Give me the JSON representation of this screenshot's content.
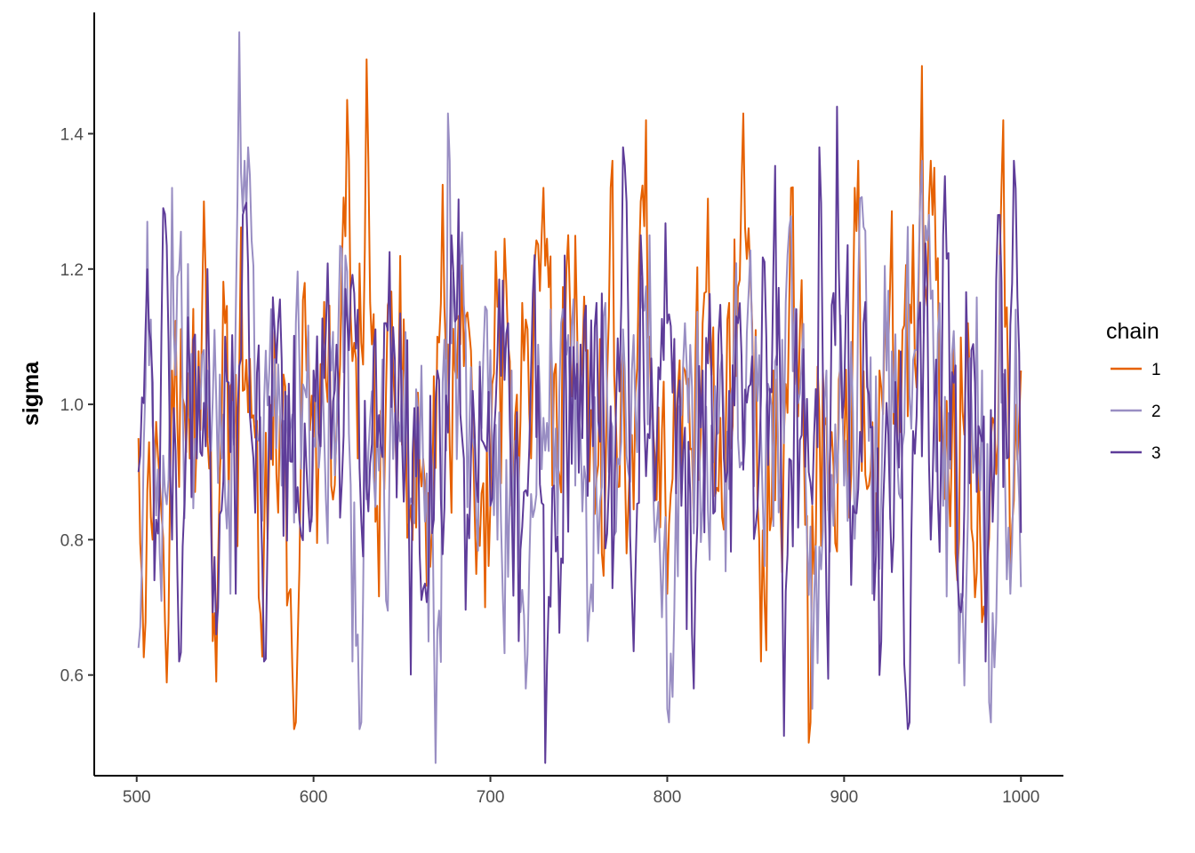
{
  "chart_data": {
    "type": "line",
    "title": "",
    "xlabel": "",
    "ylabel": "sigma",
    "xlim": [
      476,
      1024
    ],
    "ylim": [
      0.4512,
      1.5792
    ],
    "x_ticks": [
      "500",
      "600",
      "700",
      "800",
      "900",
      "1000"
    ],
    "y_ticks": [
      "0.6",
      "0.8",
      "1.0",
      "1.2",
      "1.4"
    ],
    "grid": false,
    "legend": {
      "title": "chain",
      "position": "right"
    },
    "x_range": [
      501,
      1000
    ],
    "series": [
      {
        "name": "1",
        "color": "#e66101",
        "x": [
          501,
          510,
          520,
          530,
          538,
          543,
          550,
          555,
          560,
          565,
          570,
          575,
          580,
          589,
          596,
          600,
          610,
          619,
          625,
          630,
          636,
          641,
          650,
          660,
          666,
          670,
          680,
          690,
          697,
          707,
          712,
          718,
          723,
          730,
          735,
          745,
          755,
          763,
          768,
          778,
          788,
          790,
          800,
          805,
          810,
          820,
          830,
          835,
          843,
          848,
          853,
          860,
          864,
          870,
          877,
          880,
          882,
          890,
          900,
          906,
          914,
          920,
          930,
          938,
          944,
          950,
          956,
          963,
          970,
          980,
          984,
          990,
          994,
          1000
        ],
        "values": [
          0.95,
          0.88,
          1.05,
          0.92,
          1.3,
          0.65,
          1.12,
          0.95,
          1.02,
          0.98,
          0.69,
          0.92,
          0.84,
          0.52,
          1.05,
          0.95,
          0.88,
          1.45,
          0.92,
          1.51,
          0.85,
          1.02,
          0.94,
          0.91,
          0.76,
          1.1,
          1.05,
          0.98,
          0.7,
          1.1,
          0.85,
          1.15,
          0.92,
          1.32,
          0.88,
          1.15,
          1.08,
          0.78,
          1.32,
          0.85,
          1.42,
          1.1,
          0.72,
          0.95,
          1.05,
          1.12,
          0.98,
          1.15,
          1.43,
          1.12,
          0.62,
          1.05,
          0.85,
          1.32,
          0.98,
          0.5,
          0.85,
          0.98,
          0.92,
          1.32,
          0.88,
          1.05,
          0.95,
          1.12,
          1.5,
          1.28,
          0.92,
          0.78,
          1.12,
          0.68,
          0.98,
          1.42,
          0.74,
          1.05
        ]
      },
      {
        "name": "2",
        "color": "#998ec3",
        "x": [
          501,
          506,
          513,
          520,
          530,
          540,
          548,
          553,
          558,
          563,
          568,
          575,
          582,
          590,
          600,
          610,
          618,
          622,
          626,
          632,
          640,
          650,
          660,
          669,
          676,
          680,
          690,
          700,
          707,
          712,
          720,
          730,
          740,
          748,
          755,
          765,
          772,
          780,
          790,
          800,
          805,
          810,
          820,
          830,
          840,
          850,
          860,
          868,
          878,
          882,
          890,
          900,
          908,
          916,
          924,
          930,
          940,
          948,
          956,
          966,
          978,
          982,
          988,
          994,
          997,
          1000
        ],
        "values": [
          0.64,
          1.27,
          0.78,
          1.32,
          0.98,
          1.05,
          0.92,
          0.72,
          1.55,
          1.38,
          0.95,
          1.05,
          0.88,
          1.12,
          0.95,
          1.05,
          1.22,
          0.62,
          0.52,
          0.98,
          0.85,
          1.05,
          0.92,
          0.47,
          1.43,
          1.15,
          0.95,
          1.08,
          0.72,
          1.05,
          0.58,
          0.98,
          1.12,
          0.88,
          0.65,
          1.15,
          0.92,
          1.05,
          1.25,
          0.55,
          0.88,
          1.12,
          0.85,
          1.05,
          0.95,
          1.1,
          0.82,
          1.22,
          0.92,
          0.55,
          1.05,
          0.88,
          1.18,
          0.72,
          1.05,
          0.92,
          1.08,
          1.28,
          0.85,
          0.72,
          1.05,
          0.56,
          1.22,
          0.72,
          1.14,
          0.73
        ]
      },
      {
        "name": "3",
        "color": "#5e3c99",
        "x": [
          501,
          505,
          510,
          515,
          520,
          524,
          530,
          534,
          540,
          545,
          550,
          556,
          560,
          565,
          572,
          580,
          590,
          600,
          610,
          620,
          630,
          640,
          650,
          660,
          670,
          678,
          685,
          690,
          700,
          710,
          716,
          723,
          731,
          736,
          742,
          752,
          760,
          770,
          775,
          780,
          785,
          790,
          800,
          808,
          815,
          820,
          832,
          840,
          850,
          860,
          866,
          872,
          880,
          886,
          890,
          896,
          905,
          911,
          920,
          930,
          936,
          945,
          950,
          956,
          964,
          970,
          980,
          988,
          992,
          996,
          1000
        ],
        "values": [
          0.9,
          1.11,
          0.74,
          1.29,
          0.8,
          0.62,
          1.05,
          0.92,
          1.2,
          0.66,
          1.1,
          0.72,
          1.28,
          0.95,
          0.62,
          1.12,
          0.84,
          1.05,
          0.92,
          1.08,
          0.88,
          1.12,
          0.95,
          0.78,
          1.05,
          1.25,
          0.92,
          1.02,
          0.85,
          1.12,
          0.65,
          1.05,
          0.47,
          0.88,
          1.22,
          0.95,
          1.15,
          0.82,
          1.38,
          0.72,
          1.25,
          0.95,
          1.12,
          0.85,
          0.58,
          1.05,
          0.92,
          1.12,
          0.82,
          1.2,
          0.51,
          1.05,
          0.9,
          1.38,
          0.72,
          1.44,
          0.85,
          1.12,
          0.6,
          0.95,
          0.52,
          1.1,
          0.88,
          1.25,
          0.75,
          1.05,
          0.62,
          1.28,
          0.92,
          1.36,
          0.81
        ]
      }
    ]
  }
}
